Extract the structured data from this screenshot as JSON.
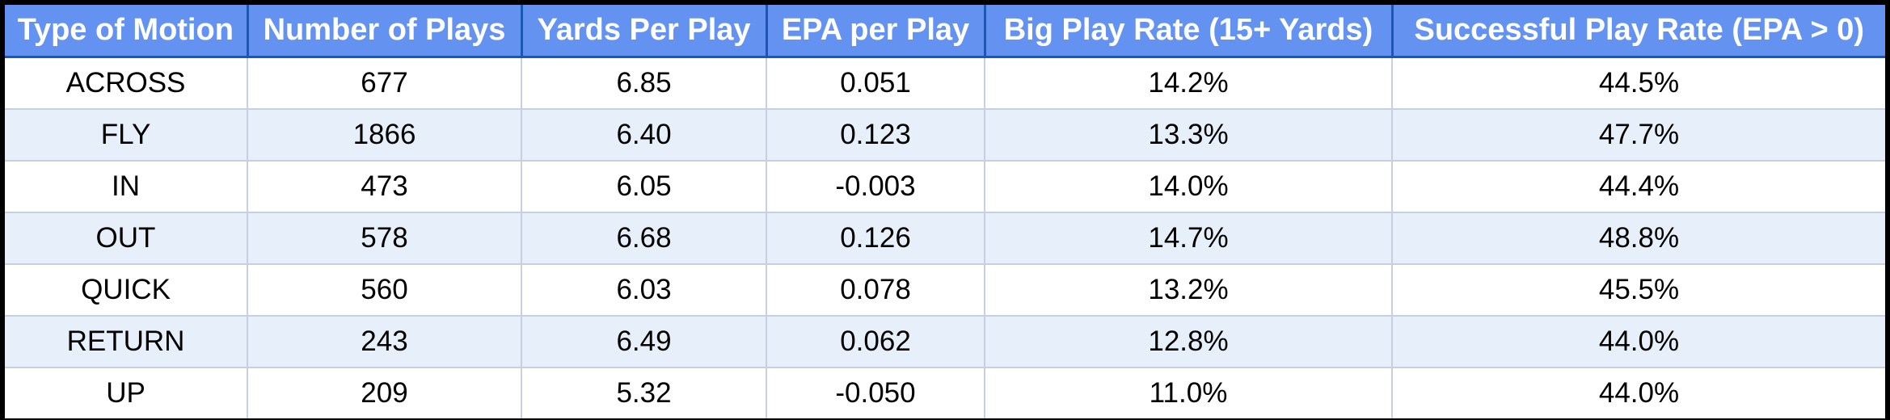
{
  "chart_data": {
    "type": "table",
    "columns": [
      "Type of Motion",
      "Number of Plays",
      "Yards Per Play",
      "EPA per Play",
      "Big Play Rate (15+ Yards)",
      "Successful Play Rate (EPA > 0)"
    ],
    "rows": [
      [
        "ACROSS",
        "677",
        "6.85",
        "0.051",
        "14.2%",
        "44.5%"
      ],
      [
        "FLY",
        "1866",
        "6.40",
        "0.123",
        "13.3%",
        "47.7%"
      ],
      [
        "IN",
        "473",
        "6.05",
        "-0.003",
        "14.0%",
        "44.4%"
      ],
      [
        "OUT",
        "578",
        "6.68",
        "0.126",
        "14.7%",
        "48.8%"
      ],
      [
        "QUICK",
        "560",
        "6.03",
        "0.078",
        "13.2%",
        "45.5%"
      ],
      [
        "RETURN",
        "243",
        "6.49",
        "0.062",
        "12.8%",
        "44.0%"
      ],
      [
        "UP",
        "209",
        "5.32",
        "-0.050",
        "11.0%",
        "44.0%"
      ]
    ],
    "colors": {
      "header_background": "#6492f1",
      "header_text": "#ffffff",
      "row_alternate": "#e7effb",
      "row_base": "#ffffff",
      "frame": "#000000"
    }
  }
}
